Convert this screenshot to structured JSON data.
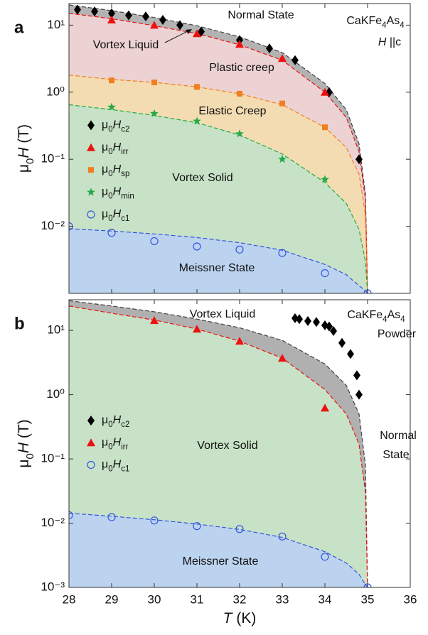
{
  "chart_data": [
    {
      "type": "scatter",
      "panel_label": "a",
      "ylabel": "μ0H (T)",
      "yscale": "log",
      "xlim": [
        28,
        36
      ],
      "ylim": [
        0.001,
        21
      ],
      "xticks": [
        28,
        29,
        30,
        31,
        32,
        33,
        34,
        35,
        36
      ],
      "xtick_labels": false,
      "yticks": [
        {
          "value": 10,
          "label": "10¹"
        },
        {
          "value": 1,
          "label": "10⁰"
        },
        {
          "value": 0.1,
          "label": "10⁻¹"
        },
        {
          "value": 0.01,
          "label": "10⁻²"
        }
      ],
      "legend": "left",
      "series": [
        {
          "name": "μ0Hc2",
          "color": "#000000",
          "marker": "diamond",
          "x": [
            28.2,
            28.6,
            29,
            29.4,
            29.8,
            30.2,
            30.6,
            31.1,
            32,
            32.7,
            33.3,
            34.1,
            34.8
          ],
          "values": [
            17,
            16,
            15,
            14,
            13.5,
            12,
            10,
            8,
            6,
            4.5,
            3,
            1.0,
            0.1
          ]
        },
        {
          "name": "μ0Hirr",
          "color": "#ee1111",
          "marker": "triangle",
          "x": [
            29,
            30,
            31,
            32,
            33,
            34
          ],
          "values": [
            12,
            10,
            7.5,
            5.2,
            3.2,
            1.0
          ]
        },
        {
          "name": "μ0Hsp",
          "color": "#f07f1f",
          "marker": "square",
          "x": [
            29,
            30,
            31,
            32,
            33,
            34
          ],
          "values": [
            1.5,
            1.4,
            1.2,
            0.95,
            0.68,
            0.3
          ]
        },
        {
          "name": "μ0Hmin",
          "color": "#22aa44",
          "marker": "star",
          "x": [
            29,
            30,
            31,
            32,
            33,
            34
          ],
          "values": [
            0.6,
            0.48,
            0.37,
            0.24,
            0.1,
            0.05
          ]
        },
        {
          "name": "μ0Hc1",
          "color": "#3355dd",
          "marker": "circle",
          "x": [
            28,
            29,
            30,
            31,
            32,
            33,
            34,
            35
          ],
          "values": [
            0.01,
            0.008,
            0.006,
            0.005,
            0.0045,
            0.004,
            0.002,
            0.001
          ]
        }
      ],
      "fits": [
        {
          "color": "#444444",
          "fill": "#b3b3b3",
          "x": [
            28,
            29,
            30,
            31,
            32,
            33,
            34,
            34.5,
            34.8,
            34.95,
            35
          ],
          "values": [
            20,
            16.5,
            13,
            9.8,
            6.7,
            3.9,
            1.35,
            0.55,
            0.17,
            0.03,
            0.001
          ]
        },
        {
          "color": "#ee1111",
          "fill": "#ecd2d2",
          "x": [
            28,
            29,
            30,
            31,
            32,
            33,
            34,
            34.5,
            34.8,
            34.95,
            35
          ],
          "values": [
            15,
            12.5,
            9.8,
            7.5,
            5.1,
            3,
            1.0,
            0.42,
            0.13,
            0.025,
            0.001
          ]
        },
        {
          "color": "#f07f1f",
          "fill": "#f4dcb2",
          "x": [
            28,
            29,
            30,
            31,
            32,
            33,
            34,
            34.5,
            34.8,
            34.95,
            35
          ],
          "values": [
            1.8,
            1.55,
            1.4,
            1.2,
            0.95,
            0.65,
            0.3,
            0.15,
            0.06,
            0.015,
            0.001
          ]
        },
        {
          "color": "#22aa44",
          "fill": "#c7e2c6",
          "x": [
            28,
            29,
            30,
            31,
            32,
            33,
            34,
            34.5,
            34.8,
            34.95,
            35
          ],
          "values": [
            0.65,
            0.55,
            0.45,
            0.35,
            0.23,
            0.12,
            0.045,
            0.022,
            0.009,
            0.003,
            0.001
          ]
        },
        {
          "color": "#3355dd",
          "fill": "#bcd3f0",
          "x": [
            28,
            29,
            30,
            31,
            32,
            33,
            34,
            34.5,
            34.8,
            34.95,
            35
          ],
          "values": [
            0.0092,
            0.0085,
            0.0077,
            0.0068,
            0.0057,
            0.0044,
            0.0027,
            0.0019,
            0.0013,
            0.0011,
            0.001
          ]
        }
      ],
      "annotations": [
        "Normal State",
        "Vortex Liquid",
        "Plastic creep",
        "Elastic Creep",
        "Vortex Solid",
        "Meissner State",
        "CaKFe4As4",
        "H ||c"
      ]
    },
    {
      "type": "scatter",
      "panel_label": "b",
      "xlabel": "T  (K)",
      "ylabel": "μ0H (T)",
      "yscale": "log",
      "xlim": [
        28,
        36
      ],
      "ylim": [
        0.001,
        30
      ],
      "xticks": [
        28,
        29,
        30,
        31,
        32,
        33,
        34,
        35,
        36
      ],
      "xtick_labels": true,
      "yticks": [
        {
          "value": 10,
          "label": "10¹"
        },
        {
          "value": 1,
          "label": "10⁰"
        },
        {
          "value": 0.1,
          "label": "10⁻¹"
        },
        {
          "value": 0.01,
          "label": "10⁻²"
        },
        {
          "value": 0.001,
          "label": "10⁻³"
        }
      ],
      "legend": "left",
      "series": [
        {
          "name": "μ0Hc2",
          "color": "#000000",
          "marker": "diamond",
          "x": [
            33.3,
            33.4,
            33.6,
            33.8,
            34,
            34.1,
            34.2,
            34.4,
            34.6,
            34.75,
            34.8
          ],
          "values": [
            15.5,
            15,
            14,
            13.5,
            12,
            11.5,
            9.8,
            6.4,
            4.3,
            2,
            1.0
          ]
        },
        {
          "name": "μ0Hirr",
          "color": "#ee1111",
          "marker": "triangle",
          "x": [
            30,
            31,
            32,
            33,
            34
          ],
          "values": [
            14.3,
            10.5,
            6.8,
            3.7,
            0.62
          ]
        },
        {
          "name": "μ0Hc1",
          "color": "#3355dd",
          "marker": "circle",
          "x": [
            28,
            29,
            30,
            31,
            32,
            33,
            34,
            35
          ],
          "values": [
            0.0133,
            0.0124,
            0.011,
            0.009,
            0.0081,
            0.0062,
            0.003,
            0.001
          ]
        }
      ],
      "fits": [
        {
          "color": "#444444",
          "fill": "#b0b0b0",
          "x": [
            28,
            29,
            30,
            31,
            32,
            33,
            34,
            34.5,
            34.8,
            34.95,
            35
          ],
          "values": [
            29,
            24,
            19.5,
            15,
            11,
            7,
            3,
            1.4,
            0.5,
            0.08,
            0.001
          ]
        },
        {
          "color": "#ee1111",
          "fill": "#c7e2c6",
          "x": [
            28,
            29,
            30,
            31,
            32,
            33,
            34,
            34.5,
            34.8,
            34.95,
            35
          ],
          "values": [
            24,
            18.5,
            14.5,
            10.5,
            6.8,
            3.7,
            1.2,
            0.5,
            0.17,
            0.03,
            0.001
          ]
        },
        {
          "color": "#3355dd",
          "fill": "#bcd3f0",
          "x": [
            28,
            29,
            30,
            31,
            32,
            33,
            34,
            34.5,
            34.8,
            34.95,
            35
          ],
          "values": [
            0.0143,
            0.0128,
            0.0113,
            0.0097,
            0.008,
            0.006,
            0.0036,
            0.0024,
            0.0016,
            0.0011,
            0.001
          ]
        }
      ],
      "annotations": [
        "Vortex Liquid",
        "Vortex Solid",
        "Meissner State",
        "Normal",
        "State",
        "CaKFe4As4",
        "Powder"
      ]
    }
  ]
}
